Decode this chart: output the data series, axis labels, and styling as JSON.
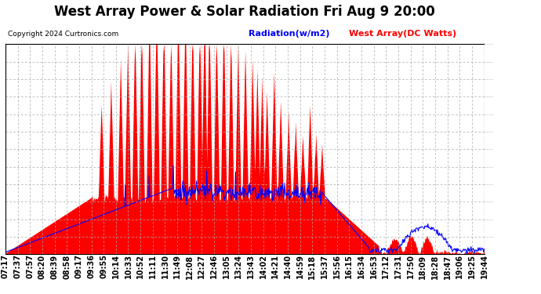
{
  "title": "West Array Power & Solar Radiation Fri Aug 9 20:00",
  "copyright": "Copyright 2024 Curtronics.com",
  "legend_radiation": "Radiation(w/m2)",
  "legend_west": "West Array(DC Watts)",
  "ymax": 1968.6,
  "yticks": [
    0.0,
    164.1,
    328.1,
    492.2,
    656.2,
    820.3,
    984.3,
    1148.4,
    1312.4,
    1476.5,
    1640.5,
    1804.6,
    1968.6
  ],
  "background_color": "#ffffff",
  "plot_bg_color": "#ffffff",
  "grid_color": "#aaaaaa",
  "radiation_color": "#0000ff",
  "west_color": "#ff0000",
  "title_fontsize": 12,
  "tick_fontsize": 7,
  "x_labels": [
    "07:17",
    "07:37",
    "07:57",
    "08:20",
    "08:39",
    "08:58",
    "09:17",
    "09:36",
    "09:55",
    "10:14",
    "10:33",
    "10:52",
    "11:11",
    "11:30",
    "11:49",
    "12:08",
    "12:27",
    "12:46",
    "13:05",
    "13:24",
    "13:43",
    "14:02",
    "14:21",
    "14:40",
    "14:59",
    "15:18",
    "15:37",
    "15:56",
    "16:15",
    "16:34",
    "16:53",
    "17:12",
    "17:31",
    "17:50",
    "18:09",
    "18:28",
    "18:47",
    "19:06",
    "19:25",
    "19:44"
  ]
}
